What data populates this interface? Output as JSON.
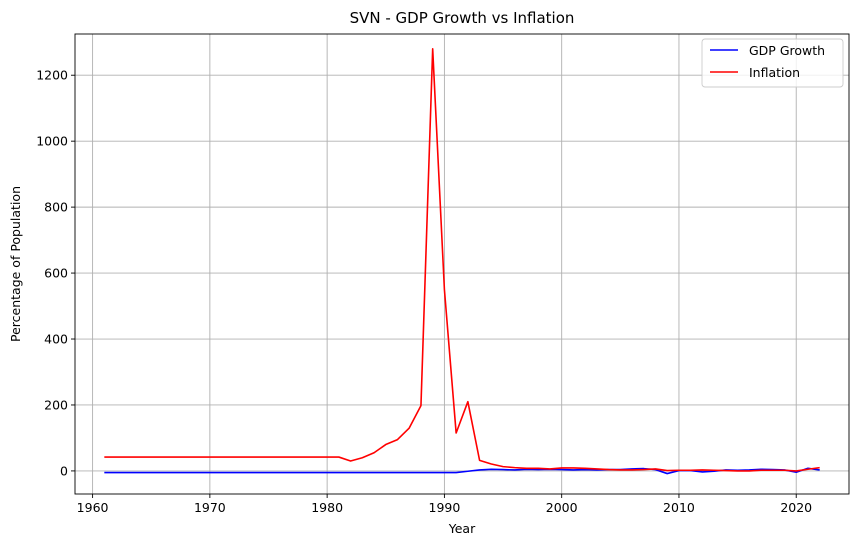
{
  "chart_data": {
    "type": "line",
    "title": "SVN - GDP Growth vs Inflation",
    "xlabel": "Year",
    "ylabel": "Percentage of Population",
    "xlim": [
      1958.5,
      2024.5
    ],
    "ylim": [
      -70,
      1325
    ],
    "x_ticks": [
      1960,
      1970,
      1980,
      1990,
      2000,
      2010,
      2020
    ],
    "y_ticks": [
      0,
      200,
      400,
      600,
      800,
      1000,
      1200
    ],
    "grid": true,
    "legend_position": "top-right",
    "x": [
      1961,
      1962,
      1963,
      1964,
      1965,
      1966,
      1967,
      1968,
      1969,
      1970,
      1971,
      1972,
      1973,
      1974,
      1975,
      1976,
      1977,
      1978,
      1979,
      1980,
      1981,
      1982,
      1983,
      1984,
      1985,
      1986,
      1987,
      1988,
      1989,
      1990,
      1991,
      1992,
      1993,
      1994,
      1995,
      1996,
      1997,
      1998,
      1999,
      2000,
      2001,
      2002,
      2003,
      2004,
      2005,
      2006,
      2007,
      2008,
      2009,
      2010,
      2011,
      2012,
      2013,
      2014,
      2015,
      2016,
      2017,
      2018,
      2019,
      2020,
      2021,
      2022
    ],
    "series": [
      {
        "name": "GDP Growth",
        "color": "#0000ff",
        "values": [
          -5,
          -5,
          -5,
          -5,
          -5,
          -5,
          -5,
          -5,
          -5,
          -5,
          -5,
          -5,
          -5,
          -5,
          -5,
          -5,
          -5,
          -5,
          -5,
          -5,
          -5,
          -5,
          -5,
          -5,
          -5,
          -5,
          -5,
          -5,
          -5,
          -5,
          -5,
          -1,
          3,
          5,
          4,
          3,
          5,
          4,
          5,
          4,
          3,
          4,
          3,
          4,
          4,
          6,
          7,
          4,
          -8,
          1,
          1,
          -3,
          -1,
          3,
          2,
          3,
          5,
          4,
          3,
          -4,
          8,
          3
        ]
      },
      {
        "name": "Inflation",
        "color": "#ff0000",
        "values": [
          42,
          42,
          42,
          42,
          42,
          42,
          42,
          42,
          42,
          42,
          42,
          42,
          42,
          42,
          42,
          42,
          42,
          42,
          42,
          42,
          42,
          30,
          40,
          55,
          80,
          95,
          130,
          198,
          1280,
          550,
          115,
          210,
          32,
          21,
          13,
          10,
          8,
          8,
          6,
          9,
          9,
          8,
          6,
          4,
          3,
          3,
          4,
          6,
          1,
          2,
          2,
          3,
          2,
          1,
          0,
          0,
          2,
          2,
          2,
          0,
          5,
          10
        ]
      }
    ]
  }
}
